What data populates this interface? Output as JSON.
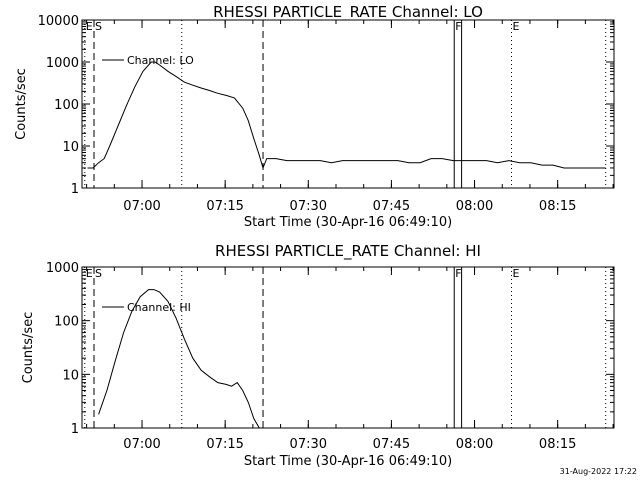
{
  "footer": {
    "timestamp": "31-Aug-2022 17:22"
  },
  "colors": {
    "background": "#ffffff",
    "foreground": "#000000"
  },
  "chart_data": [
    {
      "type": "line",
      "title": "RHESSI PARTICLE_RATE Channel: LO",
      "xlabel": "Start Time (30-Apr-16 06:49:10)",
      "ylabel": "Counts/sec",
      "y_scale": "log",
      "ylim": [
        1,
        10000
      ],
      "y_ticks": [
        1,
        10,
        100,
        1000,
        10000
      ],
      "y_tick_labels": [
        "1",
        "10",
        "100",
        "1000",
        "10000"
      ],
      "xlim": [
        "06:49:10",
        "08:25:10"
      ],
      "x_ticks": [
        "07:00",
        "07:15",
        "07:30",
        "07:45",
        "08:00",
        "08:15"
      ],
      "legend": {
        "label": "Channel: LO",
        "position": "top-left"
      },
      "markers": [
        {
          "label": "E",
          "time": "06:49:40",
          "style": "dotted"
        },
        {
          "label": "S",
          "time": "06:51:20",
          "style": "dashed"
        },
        {
          "label": "",
          "time": "07:07:10",
          "style": "dotted"
        },
        {
          "label": "",
          "time": "07:21:50",
          "style": "dashed"
        },
        {
          "label": "F",
          "time": "07:56:20",
          "style": "solid"
        },
        {
          "label": "",
          "time": "07:57:40",
          "style": "solid"
        },
        {
          "label": "E",
          "time": "08:06:40",
          "style": "dotted"
        },
        {
          "label": "",
          "time": "08:23:40",
          "style": "dotted"
        }
      ],
      "series": [
        {
          "name": "Channel: LO",
          "x": [
            "06:50:10",
            "06:51:10",
            "06:52:10",
            "06:53:10",
            "06:54:10",
            "06:55:40",
            "06:57:10",
            "06:58:40",
            "07:00:10",
            "07:01:40",
            "07:02:20",
            "07:03:10",
            "07:04:40",
            "07:06:10",
            "07:07:40",
            "07:09:10",
            "07:10:40",
            "07:12:10",
            "07:13:40",
            "07:15:10",
            "07:16:40",
            "07:18:10",
            "07:19:10",
            "07:20:10",
            "07:21:10",
            "07:21:50",
            "07:22:30",
            "07:24:10",
            "07:26:10",
            "07:28:10",
            "07:30:10",
            "07:32:10",
            "07:34:10",
            "07:36:10",
            "07:38:10",
            "07:40:10",
            "07:42:10",
            "07:44:10",
            "07:46:10",
            "07:48:10",
            "07:50:10",
            "07:52:10",
            "07:54:10",
            "07:56:10",
            "07:58:10",
            "08:00:10",
            "08:02:10",
            "08:04:10",
            "08:06:10",
            "08:08:10",
            "08:10:10",
            "08:12:10",
            "08:14:10",
            "08:16:10",
            "08:18:10",
            "08:20:10",
            "08:22:10",
            "08:23:40"
          ],
          "values": [
            3,
            3,
            4,
            5,
            10,
            30,
            90,
            250,
            600,
            1000,
            1000,
            850,
            600,
            450,
            330,
            280,
            240,
            210,
            180,
            160,
            140,
            80,
            40,
            15,
            6,
            3,
            5,
            5,
            4.5,
            4.5,
            4.5,
            4.5,
            4,
            4.5,
            4.5,
            4.5,
            4.5,
            4.5,
            4.5,
            4,
            4,
            5,
            5,
            4.5,
            4.5,
            4.5,
            4.5,
            4,
            4.5,
            4,
            4,
            3.5,
            3.5,
            3,
            3,
            3,
            3,
            3
          ]
        }
      ]
    },
    {
      "type": "line",
      "title": "RHESSI PARTICLE_RATE Channel: HI",
      "xlabel": "Start Time (30-Apr-16 06:49:10)",
      "ylabel": "Counts/sec",
      "y_scale": "log",
      "ylim": [
        1,
        1000
      ],
      "y_ticks": [
        1,
        10,
        100,
        1000
      ],
      "y_tick_labels": [
        "1",
        "10",
        "100",
        "1000"
      ],
      "xlim": [
        "06:49:10",
        "08:25:10"
      ],
      "x_ticks": [
        "07:00",
        "07:15",
        "07:30",
        "07:45",
        "08:00",
        "08:15"
      ],
      "legend": {
        "label": "Channel: HI",
        "position": "top-left"
      },
      "markers": [
        {
          "label": "E",
          "time": "06:49:40",
          "style": "dotted"
        },
        {
          "label": "S",
          "time": "06:51:20",
          "style": "dashed"
        },
        {
          "label": "",
          "time": "07:07:10",
          "style": "dotted"
        },
        {
          "label": "",
          "time": "07:21:50",
          "style": "dashed"
        },
        {
          "label": "F",
          "time": "07:56:20",
          "style": "solid"
        },
        {
          "label": "",
          "time": "07:57:40",
          "style": "solid"
        },
        {
          "label": "E",
          "time": "08:06:40",
          "style": "dotted"
        },
        {
          "label": "",
          "time": "08:23:40",
          "style": "dotted"
        }
      ],
      "series": [
        {
          "name": "Channel: HI",
          "x": [
            "06:52:10",
            "06:53:40",
            "06:55:10",
            "06:56:40",
            "06:58:10",
            "06:59:40",
            "07:01:10",
            "07:02:10",
            "07:03:10",
            "07:04:40",
            "07:06:10",
            "07:07:40",
            "07:09:10",
            "07:10:40",
            "07:12:10",
            "07:13:40",
            "07:15:10",
            "07:16:10",
            "07:17:10",
            "07:18:10",
            "07:19:10",
            "07:20:10",
            "07:21:10"
          ],
          "values": [
            1.8,
            5,
            18,
            60,
            150,
            280,
            380,
            380,
            340,
            230,
            110,
            45,
            20,
            12,
            9,
            7,
            6.5,
            6,
            7,
            5,
            3,
            1.5,
            1
          ]
        }
      ]
    }
  ]
}
